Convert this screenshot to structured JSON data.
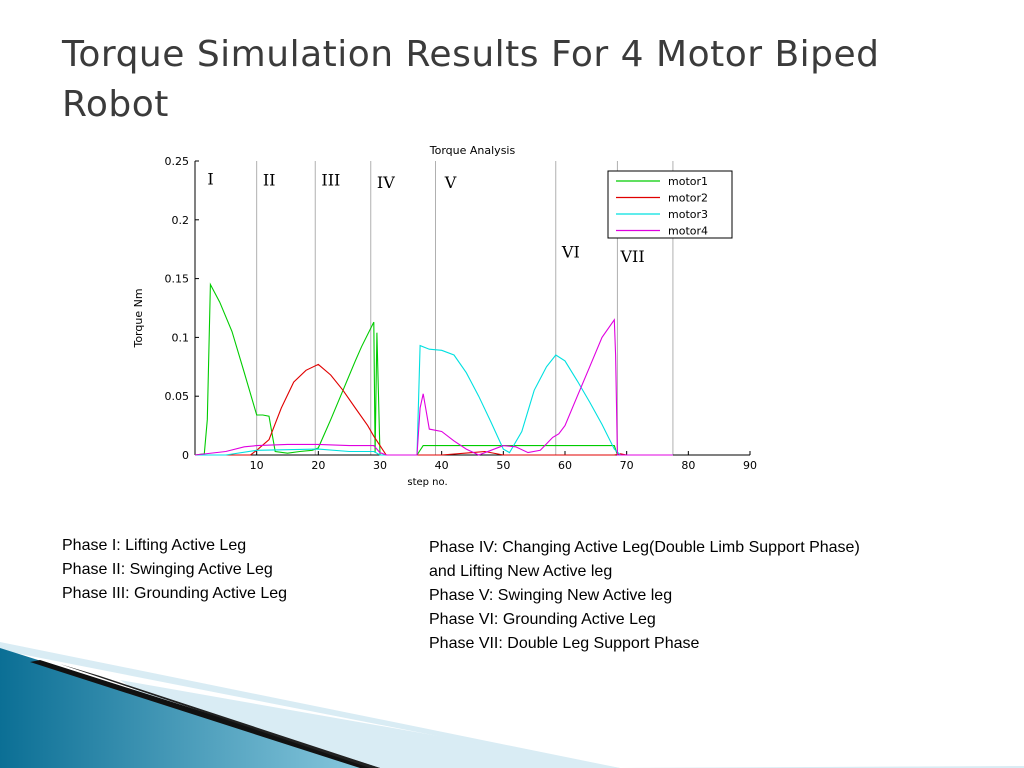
{
  "slide": {
    "title": "Torque Simulation Results For 4 Motor Biped Robot"
  },
  "notes_left": [
    "Phase I: Lifting Active Leg",
    "Phase II: Swinging Active Leg",
    "Phase III: Grounding Active Leg"
  ],
  "notes_right": [
    "Phase IV: Changing Active Leg(Double Limb Support Phase)",
    "and Lifting New Active leg",
    "Phase V: Swinging New Active leg",
    "Phase VI: Grounding Active Leg",
    "Phase VII: Double Leg Support Phase"
  ],
  "chart_data": {
    "type": "line",
    "title": "Torque Analysis",
    "xlabel": "step no.",
    "ylabel": "Torque Nm",
    "xlim": [
      0,
      90
    ],
    "ylim": [
      0,
      0.25
    ],
    "x_ticks": [
      10,
      20,
      30,
      40,
      50,
      60,
      70,
      80,
      90
    ],
    "y_ticks": [
      0,
      0.05,
      0.1,
      0.15,
      0.2,
      0.25
    ],
    "y_tick_labels": [
      "0",
      "0.05",
      "0.1",
      "0.15",
      "0.2",
      "0.25"
    ],
    "legend_position": "top-right",
    "phase_boundaries": [
      10,
      19.5,
      28.5,
      39,
      58.5,
      68.5,
      77.5
    ],
    "phase_labels": [
      {
        "label": "I",
        "x": 2,
        "y": 0.23
      },
      {
        "label": "II",
        "x": 11,
        "y": 0.229
      },
      {
        "label": "III",
        "x": 20.5,
        "y": 0.229
      },
      {
        "label": "IV",
        "x": 29.5,
        "y": 0.227
      },
      {
        "label": "V",
        "x": 40.5,
        "y": 0.227
      },
      {
        "label": "VI",
        "x": 59.5,
        "y": 0.168
      },
      {
        "label": "VII",
        "x": 69,
        "y": 0.164
      }
    ],
    "series": [
      {
        "name": "motor1",
        "color": "#00cc00",
        "points": [
          [
            0,
            0
          ],
          [
            1.5,
            0.001
          ],
          [
            2,
            0.03
          ],
          [
            2.5,
            0.145
          ],
          [
            4,
            0.13
          ],
          [
            6,
            0.105
          ],
          [
            8,
            0.07
          ],
          [
            10,
            0.034
          ],
          [
            11,
            0.034
          ],
          [
            12,
            0.033
          ],
          [
            13,
            0.003
          ],
          [
            15,
            0.0015
          ],
          [
            17,
            0.003
          ],
          [
            19,
            0.004
          ],
          [
            20,
            0.006
          ],
          [
            22,
            0.03
          ],
          [
            24,
            0.055
          ],
          [
            26,
            0.08
          ],
          [
            27,
            0.092
          ],
          [
            29,
            0.113
          ],
          [
            29.2,
            0.002
          ],
          [
            29.5,
            0.104
          ],
          [
            30,
            0
          ],
          [
            36,
            0
          ],
          [
            37,
            0.008
          ],
          [
            45,
            0.008
          ],
          [
            55,
            0.008
          ],
          [
            68,
            0.008
          ],
          [
            68.5,
            0
          ],
          [
            77.5,
            0
          ]
        ]
      },
      {
        "name": "motor2",
        "color": "#e00000",
        "points": [
          [
            0,
            0
          ],
          [
            9,
            0
          ],
          [
            10,
            0.004
          ],
          [
            12,
            0.013
          ],
          [
            14,
            0.04
          ],
          [
            16,
            0.062
          ],
          [
            18,
            0.072
          ],
          [
            20,
            0.077
          ],
          [
            22,
            0.068
          ],
          [
            24,
            0.055
          ],
          [
            26,
            0.04
          ],
          [
            28,
            0.025
          ],
          [
            29,
            0.016
          ],
          [
            30,
            0.008
          ],
          [
            31,
            0
          ],
          [
            36,
            0
          ],
          [
            40,
            0
          ],
          [
            45,
            0.002
          ],
          [
            47,
            0.003
          ],
          [
            50,
            0
          ],
          [
            55,
            0
          ],
          [
            68,
            0
          ],
          [
            69,
            0.001
          ],
          [
            70,
            0
          ],
          [
            77.5,
            0
          ]
        ]
      },
      {
        "name": "motor3",
        "color": "#00e0e0",
        "points": [
          [
            0,
            0
          ],
          [
            5,
            0
          ],
          [
            10,
            0.004
          ],
          [
            20,
            0.005
          ],
          [
            25,
            0.003
          ],
          [
            29,
            0.003
          ],
          [
            30,
            0
          ],
          [
            36,
            0
          ],
          [
            36.5,
            0.093
          ],
          [
            38,
            0.09
          ],
          [
            40,
            0.089
          ],
          [
            42,
            0.085
          ],
          [
            44,
            0.07
          ],
          [
            46,
            0.05
          ],
          [
            48,
            0.028
          ],
          [
            50,
            0.005
          ],
          [
            51,
            0.002
          ],
          [
            53,
            0.02
          ],
          [
            55,
            0.055
          ],
          [
            57,
            0.075
          ],
          [
            58.5,
            0.085
          ],
          [
            60,
            0.08
          ],
          [
            62,
            0.063
          ],
          [
            64,
            0.045
          ],
          [
            66,
            0.026
          ],
          [
            68,
            0.005
          ],
          [
            69,
            0
          ],
          [
            77.5,
            0
          ]
        ]
      },
      {
        "name": "motor4",
        "color": "#e000e0",
        "points": [
          [
            0,
            0
          ],
          [
            5,
            0.003
          ],
          [
            8,
            0.007
          ],
          [
            10,
            0.008
          ],
          [
            15,
            0.009
          ],
          [
            20,
            0.009
          ],
          [
            25,
            0.008
          ],
          [
            29,
            0.008
          ],
          [
            30,
            0.002
          ],
          [
            31,
            0
          ],
          [
            36,
            0
          ],
          [
            36.5,
            0.04
          ],
          [
            37,
            0.052
          ],
          [
            38,
            0.022
          ],
          [
            40,
            0.02
          ],
          [
            42,
            0.012
          ],
          [
            44,
            0.005
          ],
          [
            46,
            0
          ],
          [
            48,
            0.004
          ],
          [
            50,
            0.008
          ],
          [
            52,
            0.007
          ],
          [
            54,
            0.002
          ],
          [
            56,
            0.004
          ],
          [
            58,
            0.015
          ],
          [
            59,
            0.018
          ],
          [
            60,
            0.025
          ],
          [
            62,
            0.05
          ],
          [
            64,
            0.075
          ],
          [
            66,
            0.1
          ],
          [
            68,
            0.115
          ],
          [
            68.2,
            0.085
          ],
          [
            68.5,
            0
          ],
          [
            77.5,
            0
          ]
        ]
      }
    ]
  },
  "decor": {
    "band_dark": "#0b6f95",
    "band_light": "#8ccbe0",
    "band_pale": "#d9ecf4"
  }
}
